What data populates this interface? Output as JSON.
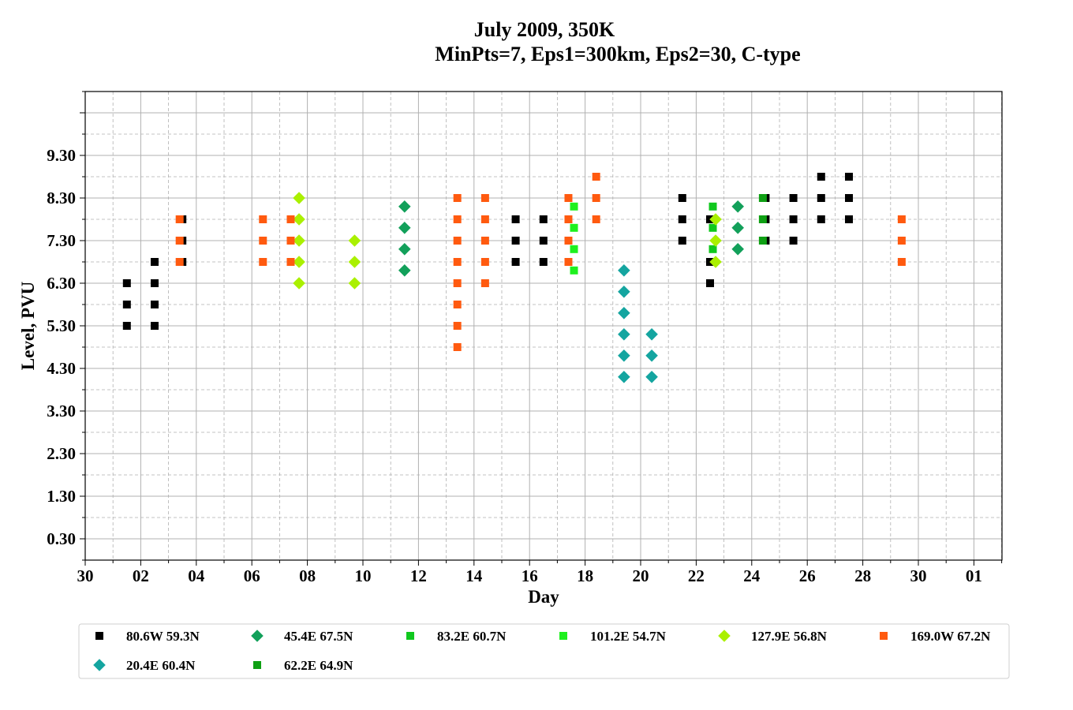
{
  "chart_data": {
    "type": "scatter",
    "title_line1": "July 2009, 350K",
    "title_line2": "MinPts=7, Eps1=300km, Eps2=30, C-type",
    "xlabel": "Day",
    "ylabel": "Level, PVU",
    "x_tick_labels": [
      "30",
      "02",
      "04",
      "06",
      "08",
      "10",
      "12",
      "14",
      "16",
      "18",
      "20",
      "22",
      "24",
      "26",
      "28",
      "30",
      "01"
    ],
    "y_tick_labels": [
      "0.30",
      "1.30",
      "2.30",
      "3.30",
      "4.30",
      "5.30",
      "6.30",
      "7.30",
      "8.30",
      "9.30"
    ],
    "grid": true,
    "legend_position": "bottom",
    "series": [
      {
        "name": "80.6W 59.3N",
        "marker": "square",
        "color": "#000000",
        "points": [
          [
            1.5,
            5.3
          ],
          [
            1.5,
            5.8
          ],
          [
            1.5,
            6.3
          ],
          [
            2.5,
            5.3
          ],
          [
            2.5,
            5.8
          ],
          [
            2.5,
            6.3
          ],
          [
            2.5,
            6.8
          ],
          [
            3.5,
            6.8
          ],
          [
            3.5,
            7.3
          ],
          [
            3.5,
            7.8
          ],
          [
            15.5,
            6.8
          ],
          [
            15.5,
            7.3
          ],
          [
            15.5,
            7.8
          ],
          [
            16.5,
            6.8
          ],
          [
            16.5,
            7.3
          ],
          [
            16.5,
            7.8
          ],
          [
            21.5,
            7.3
          ],
          [
            21.5,
            7.8
          ],
          [
            21.5,
            8.3
          ],
          [
            22.5,
            6.3
          ],
          [
            22.5,
            6.8
          ],
          [
            22.5,
            7.8
          ],
          [
            24.5,
            7.3
          ],
          [
            24.5,
            7.8
          ],
          [
            24.5,
            8.3
          ],
          [
            25.5,
            7.3
          ],
          [
            25.5,
            7.8
          ],
          [
            25.5,
            8.3
          ],
          [
            26.5,
            7.8
          ],
          [
            26.5,
            8.3
          ],
          [
            26.5,
            8.8
          ],
          [
            27.5,
            7.8
          ],
          [
            27.5,
            8.3
          ],
          [
            27.5,
            8.8
          ]
        ]
      },
      {
        "name": "45.4E 67.5N",
        "marker": "diamond",
        "color": "#12a05a",
        "points": [
          [
            11.5,
            6.6
          ],
          [
            11.5,
            7.1
          ],
          [
            11.5,
            7.6
          ],
          [
            11.5,
            8.1
          ],
          [
            23.5,
            7.1
          ],
          [
            23.5,
            7.6
          ],
          [
            23.5,
            8.1
          ]
        ]
      },
      {
        "name": "83.2E 60.7N",
        "marker": "square",
        "color": "#10c81e",
        "points": [
          [
            22.6,
            7.1
          ],
          [
            22.6,
            7.6
          ],
          [
            22.6,
            8.1
          ]
        ]
      },
      {
        "name": "101.2E 54.7N",
        "marker": "square",
        "color": "#1ef01e",
        "points": [
          [
            17.6,
            6.6
          ],
          [
            17.6,
            7.1
          ],
          [
            17.6,
            7.6
          ],
          [
            17.6,
            8.1
          ]
        ]
      },
      {
        "name": "127.9E 56.8N",
        "marker": "diamond",
        "color": "#aaf000",
        "points": [
          [
            7.7,
            6.3
          ],
          [
            7.7,
            6.8
          ],
          [
            7.7,
            7.3
          ],
          [
            7.7,
            7.8
          ],
          [
            7.7,
            8.3
          ],
          [
            9.7,
            6.3
          ],
          [
            9.7,
            6.8
          ],
          [
            9.7,
            7.3
          ],
          [
            22.7,
            6.8
          ],
          [
            22.7,
            7.3
          ],
          [
            22.7,
            7.8
          ]
        ]
      },
      {
        "name": "169.0W 67.2N",
        "marker": "square",
        "color": "#ff5a0f",
        "points": [
          [
            3.4,
            6.8
          ],
          [
            3.4,
            7.3
          ],
          [
            3.4,
            7.8
          ],
          [
            6.4,
            6.8
          ],
          [
            6.4,
            7.3
          ],
          [
            6.4,
            7.8
          ],
          [
            7.4,
            6.8
          ],
          [
            7.4,
            7.3
          ],
          [
            7.4,
            7.8
          ],
          [
            13.4,
            4.8
          ],
          [
            13.4,
            5.3
          ],
          [
            13.4,
            5.8
          ],
          [
            13.4,
            6.3
          ],
          [
            13.4,
            6.8
          ],
          [
            13.4,
            7.3
          ],
          [
            13.4,
            7.8
          ],
          [
            13.4,
            8.3
          ],
          [
            14.4,
            6.3
          ],
          [
            14.4,
            6.8
          ],
          [
            14.4,
            7.3
          ],
          [
            14.4,
            7.8
          ],
          [
            14.4,
            8.3
          ],
          [
            17.4,
            6.8
          ],
          [
            17.4,
            7.3
          ],
          [
            17.4,
            7.8
          ],
          [
            17.4,
            8.3
          ],
          [
            18.4,
            7.8
          ],
          [
            18.4,
            8.3
          ],
          [
            18.4,
            8.8
          ],
          [
            29.4,
            6.8
          ],
          [
            29.4,
            7.3
          ],
          [
            29.4,
            7.8
          ]
        ]
      },
      {
        "name": "20.4E 60.4N",
        "marker": "diamond",
        "color": "#14a5a0",
        "points": [
          [
            19.4,
            4.1
          ],
          [
            19.4,
            4.6
          ],
          [
            19.4,
            5.1
          ],
          [
            19.4,
            5.6
          ],
          [
            19.4,
            6.1
          ],
          [
            19.4,
            6.6
          ],
          [
            20.4,
            4.1
          ],
          [
            20.4,
            4.6
          ],
          [
            20.4,
            5.1
          ]
        ]
      },
      {
        "name": "62.2E 64.9N",
        "marker": "square",
        "color": "#0fa014",
        "points": [
          [
            24.4,
            7.3
          ],
          [
            24.4,
            7.8
          ],
          [
            24.4,
            8.3
          ]
        ]
      }
    ]
  }
}
